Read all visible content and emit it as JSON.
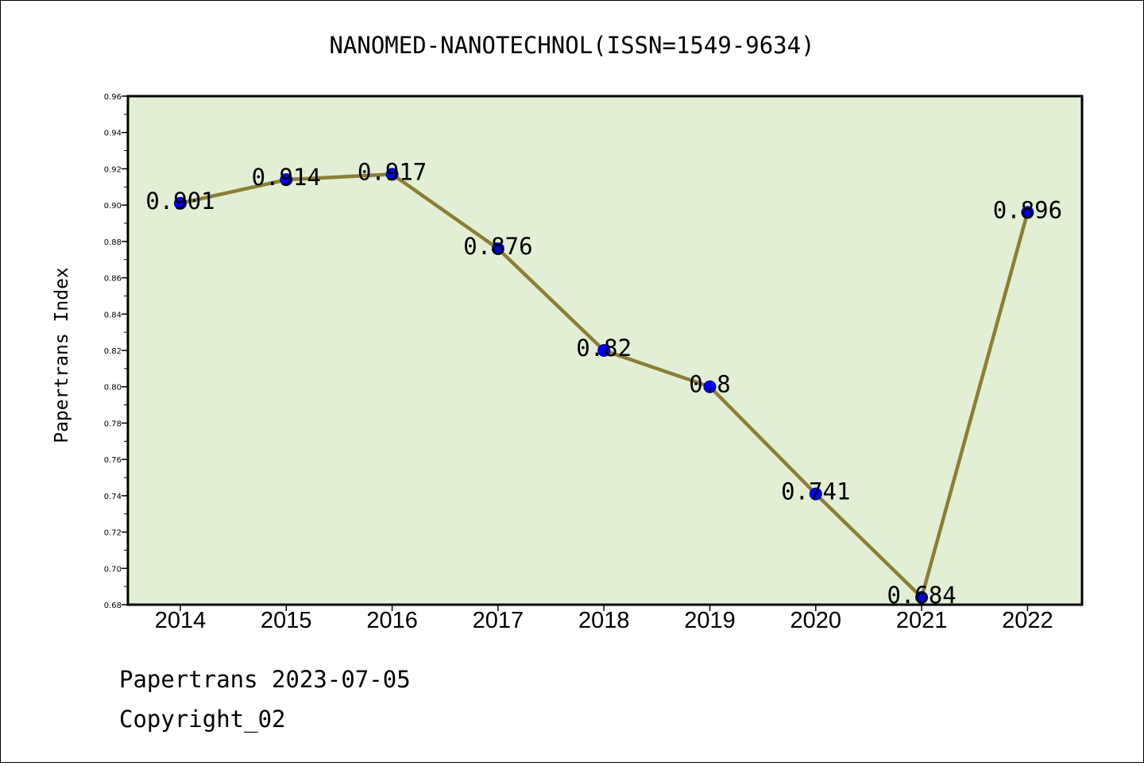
{
  "chart_data": {
    "type": "line",
    "title": "NANOMED-NANOTECHNOL(ISSN=1549-9634)",
    "xlabel": "",
    "ylabel": "Papertrans Index",
    "categories": [
      "2014",
      "2015",
      "2016",
      "2017",
      "2018",
      "2019",
      "2020",
      "2021",
      "2022"
    ],
    "values": [
      0.901,
      0.914,
      0.917,
      0.876,
      0.82,
      0.8,
      0.741,
      0.684,
      0.896
    ],
    "data_labels": [
      "0.901",
      "0.914",
      "0.917",
      "0.876",
      "0.82",
      "0.8",
      "0.741",
      "0.684",
      "0.896"
    ],
    "ylim": [
      0.68,
      0.96
    ],
    "yticks": [
      "0.68",
      "0.70",
      "0.72",
      "0.74",
      "0.76",
      "0.78",
      "0.80",
      "0.82",
      "0.84",
      "0.86",
      "0.88",
      "0.90",
      "0.92",
      "0.94",
      "0.96"
    ],
    "grid": false,
    "colors": {
      "plot_background": "#e2efd5",
      "line": "#8b7f35",
      "marker": "#0000ff"
    }
  },
  "footer": {
    "line1": "Papertrans 2023-07-05",
    "line2": "Copyright_02"
  }
}
